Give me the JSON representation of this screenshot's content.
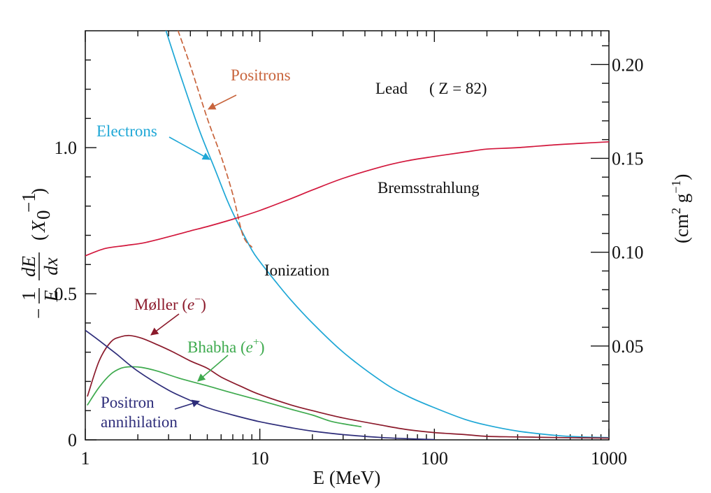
{
  "chart_data": {
    "type": "line",
    "x_scale": "log",
    "xlim": [
      1,
      1000
    ],
    "ylim": [
      0,
      1.4
    ],
    "y2lim": [
      0,
      0.218
    ],
    "xlabel": "E  (MeV)",
    "ylabel_parts": {
      "minus": "−",
      "numerator": "1",
      "denominator": "E",
      "deriv_top": "dE",
      "deriv_bottom": "dx",
      "unit_open": "(",
      "unit_sym": "X",
      "unit_sub": "0",
      "unit_sup": "−1",
      "unit_close": ")"
    },
    "y2label_parts": {
      "open": "(cm",
      "sup1": "2",
      "mid": " g",
      "sup2": "−1",
      "close": ")"
    },
    "x_ticks": [
      {
        "value": 1,
        "label": "1"
      },
      {
        "value": 10,
        "label": "10"
      },
      {
        "value": 100,
        "label": "100"
      },
      {
        "value": 1000,
        "label": "1000"
      }
    ],
    "y_ticks": [
      {
        "value": 0,
        "label": "0"
      },
      {
        "value": 0.5,
        "label": "0.5"
      },
      {
        "value": 1.0,
        "label": "1.0"
      }
    ],
    "y_minor_ticks": [
      0.1,
      0.2,
      0.3,
      0.4,
      0.6,
      0.7,
      0.8,
      0.9,
      1.1,
      1.2,
      1.3
    ],
    "y2_ticks": [
      {
        "value": 0.05,
        "label": "0.05"
      },
      {
        "value": 0.1,
        "label": "0.10"
      },
      {
        "value": 0.15,
        "label": "0.15"
      },
      {
        "value": 0.2,
        "label": "0.20"
      }
    ],
    "y2_minor_ticks": [
      0.01,
      0.02,
      0.03,
      0.04,
      0.06,
      0.07,
      0.08,
      0.09,
      0.11,
      0.12,
      0.13,
      0.14,
      0.16,
      0.17,
      0.18,
      0.19,
      0.21
    ],
    "series": [
      {
        "name": "Ionization",
        "color": "#1ea7d6",
        "dash": "none",
        "points": [
          [
            2.9,
            1.4
          ],
          [
            3.5,
            1.25
          ],
          [
            4.5,
            1.06
          ],
          [
            5.5,
            0.93
          ],
          [
            6.5,
            0.82
          ],
          [
            7.5,
            0.74
          ],
          [
            9,
            0.65
          ],
          [
            10,
            0.61
          ],
          [
            12,
            0.55
          ],
          [
            15,
            0.48
          ],
          [
            20,
            0.4
          ],
          [
            30,
            0.3
          ],
          [
            50,
            0.2
          ],
          [
            70,
            0.15
          ],
          [
            100,
            0.11
          ],
          [
            150,
            0.07
          ],
          [
            200,
            0.05
          ],
          [
            300,
            0.03
          ],
          [
            500,
            0.015
          ],
          [
            700,
            0.01
          ],
          [
            1000,
            0.008
          ]
        ]
      },
      {
        "name": "Positrons",
        "color": "#c8643c",
        "dash": "7,5",
        "points": [
          [
            3.4,
            1.4
          ],
          [
            4,
            1.28
          ],
          [
            5,
            1.1
          ],
          [
            6,
            0.97
          ],
          [
            7,
            0.84
          ],
          [
            8,
            0.7
          ],
          [
            9,
            0.66
          ]
        ]
      },
      {
        "name": "Bremsstrahlung",
        "color": "#d2173c",
        "dash": "none",
        "points": [
          [
            1,
            0.63
          ],
          [
            1.3,
            0.655
          ],
          [
            1.7,
            0.665
          ],
          [
            2.2,
            0.675
          ],
          [
            3,
            0.695
          ],
          [
            4,
            0.715
          ],
          [
            5,
            0.73
          ],
          [
            7,
            0.755
          ],
          [
            10,
            0.785
          ],
          [
            15,
            0.825
          ],
          [
            20,
            0.855
          ],
          [
            30,
            0.895
          ],
          [
            50,
            0.935
          ],
          [
            70,
            0.955
          ],
          [
            100,
            0.97
          ],
          [
            150,
            0.985
          ],
          [
            200,
            0.995
          ],
          [
            300,
            1.0
          ],
          [
            500,
            1.01
          ],
          [
            700,
            1.015
          ],
          [
            1000,
            1.02
          ],
          [
            1050,
            1.02
          ]
        ]
      },
      {
        "name": "Møller (e⁻)",
        "color": "#8b1a2b",
        "dash": "none",
        "points": [
          [
            1.03,
            0.15
          ],
          [
            1.2,
            0.27
          ],
          [
            1.4,
            0.335
          ],
          [
            1.6,
            0.353
          ],
          [
            1.8,
            0.357
          ],
          [
            2.1,
            0.348
          ],
          [
            2.6,
            0.325
          ],
          [
            3.2,
            0.3
          ],
          [
            4,
            0.27
          ],
          [
            5,
            0.245
          ],
          [
            6,
            0.215
          ],
          [
            8,
            0.18
          ],
          [
            10,
            0.155
          ],
          [
            15,
            0.12
          ],
          [
            20,
            0.1
          ],
          [
            30,
            0.075
          ],
          [
            50,
            0.05
          ],
          [
            70,
            0.035
          ],
          [
            100,
            0.025
          ],
          [
            150,
            0.018
          ],
          [
            200,
            0.012
          ],
          [
            300,
            0.01
          ],
          [
            500,
            0.008
          ],
          [
            700,
            0.007
          ],
          [
            1000,
            0.006
          ]
        ]
      },
      {
        "name": "Bhabha (e⁺)",
        "color": "#3eaa4e",
        "dash": "none",
        "points": [
          [
            1.03,
            0.12
          ],
          [
            1.2,
            0.18
          ],
          [
            1.4,
            0.225
          ],
          [
            1.6,
            0.245
          ],
          [
            1.8,
            0.25
          ],
          [
            2.1,
            0.248
          ],
          [
            2.6,
            0.235
          ],
          [
            3.5,
            0.21
          ],
          [
            5,
            0.185
          ],
          [
            7,
            0.16
          ],
          [
            10,
            0.135
          ],
          [
            15,
            0.105
          ],
          [
            20,
            0.085
          ],
          [
            25,
            0.065
          ],
          [
            30,
            0.055
          ],
          [
            38,
            0.045
          ]
        ]
      },
      {
        "name": "Positron annihilation",
        "color": "#2e2d7a",
        "dash": "none",
        "points": [
          [
            1,
            0.375
          ],
          [
            1.2,
            0.34
          ],
          [
            1.5,
            0.295
          ],
          [
            2,
            0.235
          ],
          [
            3,
            0.17
          ],
          [
            4,
            0.135
          ],
          [
            5,
            0.11
          ],
          [
            7,
            0.085
          ],
          [
            10,
            0.062
          ],
          [
            15,
            0.042
          ],
          [
            20,
            0.03
          ],
          [
            30,
            0.018
          ],
          [
            50,
            0.008
          ],
          [
            70,
            0.004
          ],
          [
            100,
            0.001
          ]
        ]
      }
    ],
    "annotations": [
      {
        "text": "Lead",
        "color": "#111111"
      },
      {
        "text": "( Z = 82)",
        "color": "#111111"
      },
      {
        "text": "Positrons",
        "color": "#c8643c"
      },
      {
        "text": "Electrons",
        "color": "#1ea7d6"
      },
      {
        "text": "Bremsstrahlung",
        "color": "#111111"
      },
      {
        "text": "Ionization",
        "color": "#111111"
      },
      {
        "text": "Møller (",
        "italic": "e",
        "sup": "−",
        "close": ")",
        "color": "#8b1a2b"
      },
      {
        "text": "Bhabha (",
        "italic": "e",
        "sup": "+",
        "close": ")",
        "color": "#3eaa4e"
      },
      {
        "text": "Positron",
        "color": "#2e2d7a"
      },
      {
        "text": "annihilation",
        "color": "#2e2d7a"
      }
    ]
  }
}
